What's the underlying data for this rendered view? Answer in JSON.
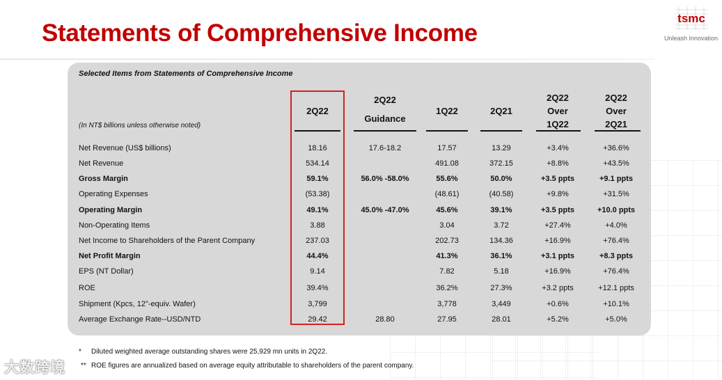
{
  "title": "Statements of Comprehensive Income",
  "brand": {
    "logo_text": "tsmc",
    "tagline": "Unleash Innovation",
    "accent_color": "#c00000"
  },
  "panel": {
    "title": "Selected Items from Statements of Comprehensive Income"
  },
  "table": {
    "note": "(In NT$ billions unless otherwise noted)",
    "headers": {
      "h2q22": "2Q22",
      "guidance_line1": "2Q22",
      "guidance_line2": "Guidance",
      "h1q22": "1Q22",
      "h2q21": "2Q21",
      "over1q22_line1": "2Q22",
      "over1q22_line2": "Over",
      "over1q22_line3": "1Q22",
      "over2q21_line1": "2Q22",
      "over2q21_line2": "Over",
      "over2q21_line3": "2Q21"
    },
    "rows": [
      {
        "label": "Net Revenue (US$ billions)",
        "q2": "18.16",
        "guide": "17.6-18.2",
        "q1": "17.57",
        "q2py": "13.29",
        "qoq": "+3.4%",
        "yoy": "+36.6%"
      },
      {
        "label": "Net Revenue",
        "q2": "534.14",
        "guide": "",
        "q1": "491.08",
        "q2py": "372.15",
        "qoq": "+8.8%",
        "yoy": "+43.5%"
      },
      {
        "label": "Gross Margin",
        "q2": "59.1%",
        "guide": "56.0% -58.0%",
        "q1": "55.6%",
        "q2py": "50.0%",
        "qoq": "+3.5 ppts",
        "yoy": "+9.1 ppts"
      },
      {
        "label": "Operating Expenses",
        "q2": "(53.38)",
        "guide": "",
        "q1": "(48.61)",
        "q2py": "(40.58)",
        "qoq": "+9.8%",
        "yoy": "+31.5%"
      },
      {
        "label": "Operating Margin",
        "q2": "49.1%",
        "guide": "45.0% -47.0%",
        "q1": "45.6%",
        "q2py": "39.1%",
        "qoq": "+3.5 ppts",
        "yoy": "+10.0 ppts"
      },
      {
        "label": "Non-Operating Items",
        "q2": "3.88",
        "guide": "",
        "q1": "3.04",
        "q2py": "3.72",
        "qoq": "+27.4%",
        "yoy": "+4.0%"
      },
      {
        "label": "Net Income to Shareholders of the Parent Company",
        "q2": "237.03",
        "guide": "",
        "q1": "202.73",
        "q2py": "134.36",
        "qoq": "+16.9%",
        "yoy": "+76.4%"
      },
      {
        "label": "Net Profit Margin",
        "q2": "44.4%",
        "guide": "",
        "q1": "41.3%",
        "q2py": "36.1%",
        "qoq": "+3.1 ppts",
        "yoy": "+8.3 ppts"
      },
      {
        "label": "EPS (NT Dollar)",
        "q2": "9.14",
        "guide": "",
        "q1": "7.82",
        "q2py": "5.18",
        "qoq": "+16.9%",
        "yoy": "+76.4%"
      },
      {
        "label": "ROE",
        "q2": "39.4%",
        "guide": "",
        "q1": "36.2%",
        "q2py": "27.3%",
        "qoq": "+3.2 ppts",
        "yoy": "+12.1 ppts"
      },
      {
        "label": "Shipment (Kpcs, 12\"-equiv. Wafer)",
        "q2": "3,799",
        "guide": "",
        "q1": "3,778",
        "q2py": "3,449",
        "qoq": "+0.6%",
        "yoy": "+10.1%"
      },
      {
        "label": "Average Exchange Rate--USD/NTD",
        "q2": "29.42",
        "guide": "28.80",
        "q1": "27.95",
        "q2py": "28.01",
        "qoq": "+5.2%",
        "yoy": "+5.0%"
      }
    ]
  },
  "footnotes": {
    "fn1_marker": "*",
    "fn1": "Diluted weighted average outstanding shares were 25,929 mn units in 2Q22.",
    "fn2_marker": "**",
    "fn2": "ROE figures are annualized based on average equity attributable to shareholders of the parent company."
  },
  "watermark": "大数跨境"
}
